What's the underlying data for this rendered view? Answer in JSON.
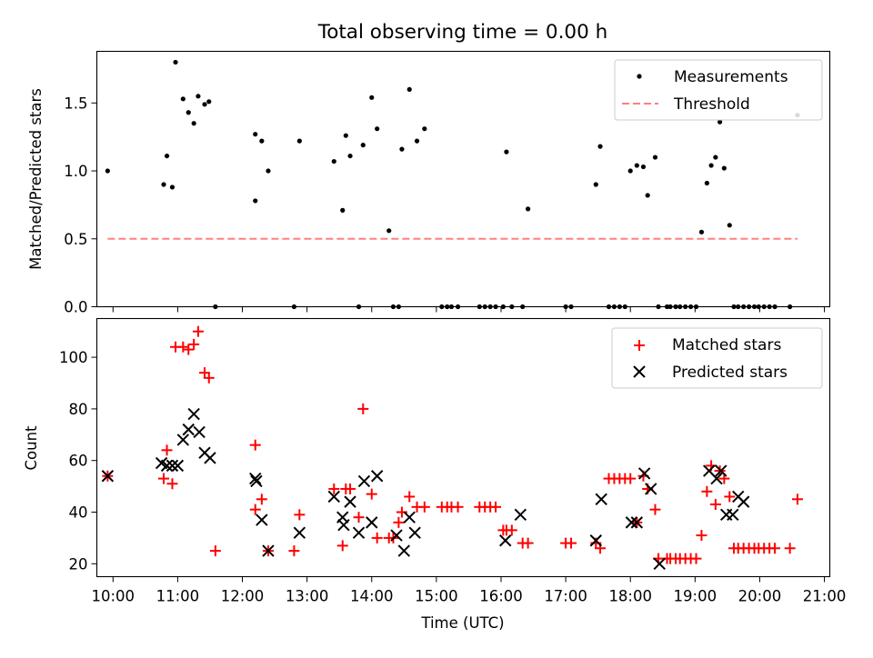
{
  "chart_data": [
    {
      "type": "scatter",
      "title": "Total observing time = 0.00 h",
      "xlabel": "",
      "ylabel": "Matched/Predicted stars",
      "x_range": [
        "09:45",
        "21:05"
      ],
      "ylim": [
        0,
        1.88
      ],
      "yticks": [
        "0.0",
        "0.5",
        "1.0",
        "1.5"
      ],
      "legend_position": "top-right",
      "grid": false,
      "legend": [
        "Measurements",
        "Threshold"
      ],
      "threshold": {
        "name": "Threshold",
        "y": 0.5,
        "x": [
          "09:55",
          "20:35"
        ],
        "color": "#ff8080",
        "style": "dashed"
      },
      "series": [
        {
          "name": "Measurements",
          "color": "#000000",
          "x": [
            "09:55",
            "10:47",
            "10:50",
            "10:55",
            "10:58",
            "11:05",
            "11:10",
            "11:15",
            "11:19",
            "11:25",
            "11:29",
            "11:35",
            "12:12",
            "12:12",
            "12:18",
            "12:24",
            "12:48",
            "12:53",
            "13:25",
            "13:33",
            "13:36",
            "13:40",
            "13:48",
            "13:52",
            "14:00",
            "14:05",
            "14:16",
            "14:20",
            "14:25",
            "14:28",
            "14:35",
            "14:42",
            "14:49",
            "15:05",
            "15:10",
            "15:14",
            "15:20",
            "15:40",
            "15:45",
            "15:50",
            "15:55",
            "16:02",
            "16:05",
            "16:10",
            "16:20",
            "16:25",
            "17:00",
            "17:05",
            "17:28",
            "17:32",
            "17:40",
            "17:45",
            "17:50",
            "17:55",
            "18:00",
            "18:06",
            "18:12",
            "18:16",
            "18:23",
            "18:26",
            "18:34",
            "18:37",
            "18:42",
            "18:46",
            "18:51",
            "18:56",
            "19:01",
            "19:06",
            "19:11",
            "19:15",
            "19:19",
            "19:23",
            "19:27",
            "19:32",
            "19:36",
            "19:40",
            "19:45",
            "19:50",
            "19:55",
            "19:59",
            "20:04",
            "20:09",
            "20:14",
            "20:28",
            "20:35"
          ],
          "y": [
            1.0,
            0.9,
            1.11,
            0.88,
            1.8,
            1.53,
            1.43,
            1.35,
            1.55,
            1.49,
            1.51,
            0.0,
            1.27,
            0.78,
            1.22,
            1.0,
            0.0,
            1.22,
            1.07,
            0.71,
            1.26,
            1.11,
            0.0,
            1.19,
            1.54,
            1.31,
            0.56,
            0.0,
            0.0,
            1.16,
            1.6,
            1.22,
            1.31,
            0.0,
            0.0,
            0.0,
            0.0,
            0.0,
            0.0,
            0.0,
            0.0,
            0.0,
            1.14,
            0.0,
            0.0,
            0.72,
            0.0,
            0.0,
            0.9,
            1.18,
            0.0,
            0.0,
            0.0,
            0.0,
            1.0,
            1.04,
            1.03,
            0.82,
            1.1,
            0.0,
            0.0,
            0.0,
            0.0,
            0.0,
            0.0,
            0.0,
            0.0,
            0.55,
            0.91,
            1.04,
            1.1,
            1.36,
            1.02,
            0.6,
            0.0,
            0.0,
            0.0,
            0.0,
            0.0,
            0.0,
            0.0,
            0.0,
            0.0,
            0.0,
            1.41
          ]
        }
      ]
    },
    {
      "type": "scatter",
      "xlabel": "Time (UTC)",
      "ylabel": "Count",
      "x_range": [
        "09:45",
        "21:05"
      ],
      "ylim": [
        15,
        115
      ],
      "xticks": [
        "10:00",
        "11:00",
        "12:00",
        "13:00",
        "14:00",
        "15:00",
        "16:00",
        "17:00",
        "18:00",
        "19:00",
        "20:00",
        "21:00"
      ],
      "yticks": [
        "20",
        "40",
        "60",
        "80",
        "100"
      ],
      "legend_position": "top-right",
      "grid": false,
      "legend": [
        "Matched stars",
        "Predicted stars"
      ],
      "series": [
        {
          "name": "Matched stars",
          "marker": "+",
          "color": "#ff0000",
          "x": [
            "09:55",
            "10:47",
            "10:50",
            "10:55",
            "10:58",
            "11:05",
            "11:10",
            "11:15",
            "11:19",
            "11:25",
            "11:29",
            "11:35",
            "12:12",
            "12:12",
            "12:18",
            "12:24",
            "12:48",
            "12:53",
            "13:25",
            "13:33",
            "13:36",
            "13:40",
            "13:48",
            "13:52",
            "14:00",
            "14:05",
            "14:16",
            "14:20",
            "14:25",
            "14:28",
            "14:35",
            "14:42",
            "14:49",
            "15:05",
            "15:10",
            "15:14",
            "15:20",
            "15:40",
            "15:45",
            "15:50",
            "15:55",
            "16:02",
            "16:05",
            "16:10",
            "16:20",
            "16:25",
            "17:00",
            "17:05",
            "17:28",
            "17:32",
            "17:40",
            "17:45",
            "17:50",
            "17:55",
            "18:00",
            "18:06",
            "18:12",
            "18:16",
            "18:23",
            "18:26",
            "18:34",
            "18:37",
            "18:42",
            "18:46",
            "18:51",
            "18:56",
            "19:01",
            "19:06",
            "19:11",
            "19:15",
            "19:19",
            "19:23",
            "19:27",
            "19:32",
            "19:36",
            "19:40",
            "19:45",
            "19:50",
            "19:55",
            "19:59",
            "20:04",
            "20:09",
            "20:14",
            "20:28",
            "20:35"
          ],
          "y": [
            54,
            53,
            64,
            51,
            104,
            104,
            103,
            105,
            110,
            94,
            92,
            25,
            66,
            41,
            45,
            25,
            25,
            39,
            49,
            27,
            49,
            49,
            38,
            80,
            47,
            30,
            30,
            30,
            36,
            40,
            46,
            42,
            42,
            42,
            42,
            42,
            42,
            42,
            42,
            42,
            42,
            33,
            33,
            33,
            28,
            28,
            28,
            28,
            28,
            26,
            53,
            53,
            53,
            53,
            53,
            36,
            54,
            49,
            41,
            22,
            22,
            22,
            22,
            22,
            22,
            22,
            22,
            31,
            48,
            58,
            43,
            56,
            53,
            46,
            26,
            26,
            26,
            26,
            26,
            26,
            26,
            26,
            26,
            26,
            45
          ]
        },
        {
          "name": "Predicted stars",
          "marker": "x",
          "color": "#000000",
          "x": [
            "09:55",
            "10:45",
            "10:50",
            "10:55",
            "11:00",
            "11:05",
            "11:10",
            "11:15",
            "11:20",
            "11:25",
            "11:30",
            "12:12",
            "12:13",
            "12:18",
            "12:24",
            "12:53",
            "13:25",
            "13:33",
            "13:34",
            "13:40",
            "13:48",
            "13:53",
            "14:00",
            "14:05",
            "14:23",
            "14:30",
            "14:35",
            "14:40",
            "16:04",
            "16:18",
            "17:28",
            "17:33",
            "18:01",
            "18:06",
            "18:13",
            "18:19",
            "18:27",
            "19:13",
            "19:20",
            "19:24",
            "19:29",
            "19:35",
            "19:40",
            "19:45"
          ],
          "y": [
            54,
            59,
            58,
            58,
            58,
            68,
            72,
            78,
            71,
            63,
            61,
            53,
            52,
            37,
            25,
            32,
            46,
            38,
            35,
            44,
            32,
            52,
            36,
            54,
            31,
            25,
            38,
            32,
            29,
            39,
            29,
            45,
            36,
            36,
            55,
            49,
            20,
            56,
            53,
            56,
            39,
            39,
            46,
            44
          ]
        }
      ]
    }
  ]
}
